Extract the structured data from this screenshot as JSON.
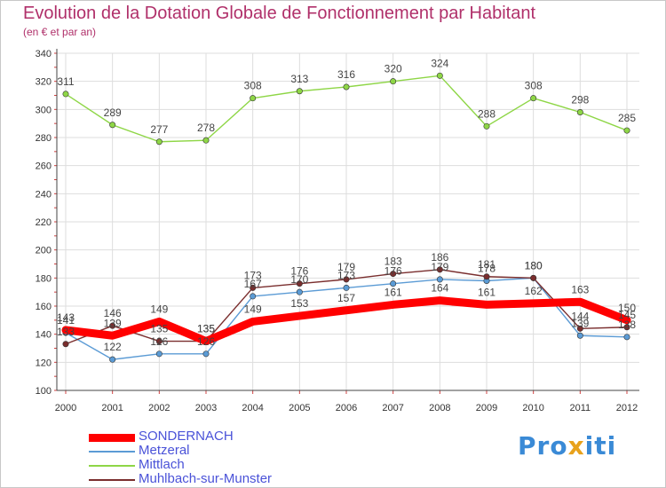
{
  "title": "Evolution de la Dotation Globale de Fonctionnement par Habitant",
  "subtitle": "(en € et par an)",
  "logo": {
    "text_a": "Pro",
    "text_b": "x",
    "text_c": "iti"
  },
  "chart_data": {
    "type": "line",
    "x": [
      "2000",
      "2001",
      "2002",
      "2003",
      "2004",
      "2005",
      "2006",
      "2007",
      "2008",
      "2009",
      "2010",
      "2011",
      "2012"
    ],
    "ylim": [
      100,
      340
    ],
    "yticks": [
      100,
      120,
      140,
      160,
      180,
      200,
      220,
      240,
      260,
      280,
      300,
      320,
      340
    ],
    "grid": true,
    "legend_position": "bottom-left",
    "series": [
      {
        "name": "SONDERNACH",
        "color": "#ff0000",
        "values": [
          143,
          139,
          149,
          135,
          149,
          153,
          157,
          161,
          164,
          161,
          162,
          163,
          150
        ]
      },
      {
        "name": "Metzeral",
        "color": "#5b9bd5",
        "values": [
          141,
          122,
          126,
          126,
          167,
          170,
          173,
          176,
          179,
          178,
          180,
          139,
          138
        ]
      },
      {
        "name": "Mittlach",
        "color": "#8ed646",
        "values": [
          311,
          289,
          277,
          278,
          308,
          313,
          316,
          320,
          324,
          288,
          308,
          298,
          285
        ]
      },
      {
        "name": "Muhlbach-sur-Munster",
        "color": "#7a2e2e",
        "values": [
          133,
          146,
          135,
          135,
          173,
          176,
          179,
          183,
          186,
          181,
          180,
          144,
          145
        ]
      }
    ]
  }
}
